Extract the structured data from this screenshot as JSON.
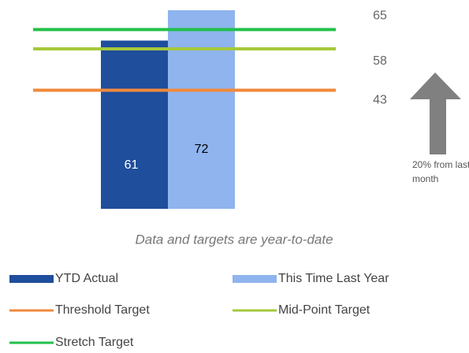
{
  "chart_data": {
    "type": "bar",
    "categories": [
      null
    ],
    "series": [
      {
        "name": "YTD Actual",
        "color": "#1f4e9c",
        "values": [
          61
        ]
      },
      {
        "name": "This Time Last Year",
        "color": "#8fb4ee",
        "values": [
          72
        ]
      }
    ],
    "targets": [
      {
        "name": "Threshold Target",
        "color": "#f08a3c",
        "value": 43
      },
      {
        "name": "Mid-Point Target",
        "color": "#a6c83c",
        "value": 58
      },
      {
        "name": "Stretch Target",
        "color": "#22c04a",
        "value": 65
      }
    ],
    "ylim": [
      0,
      72
    ],
    "note": "Data and targets are year-to-date",
    "annotation": "20% from last month"
  }
}
